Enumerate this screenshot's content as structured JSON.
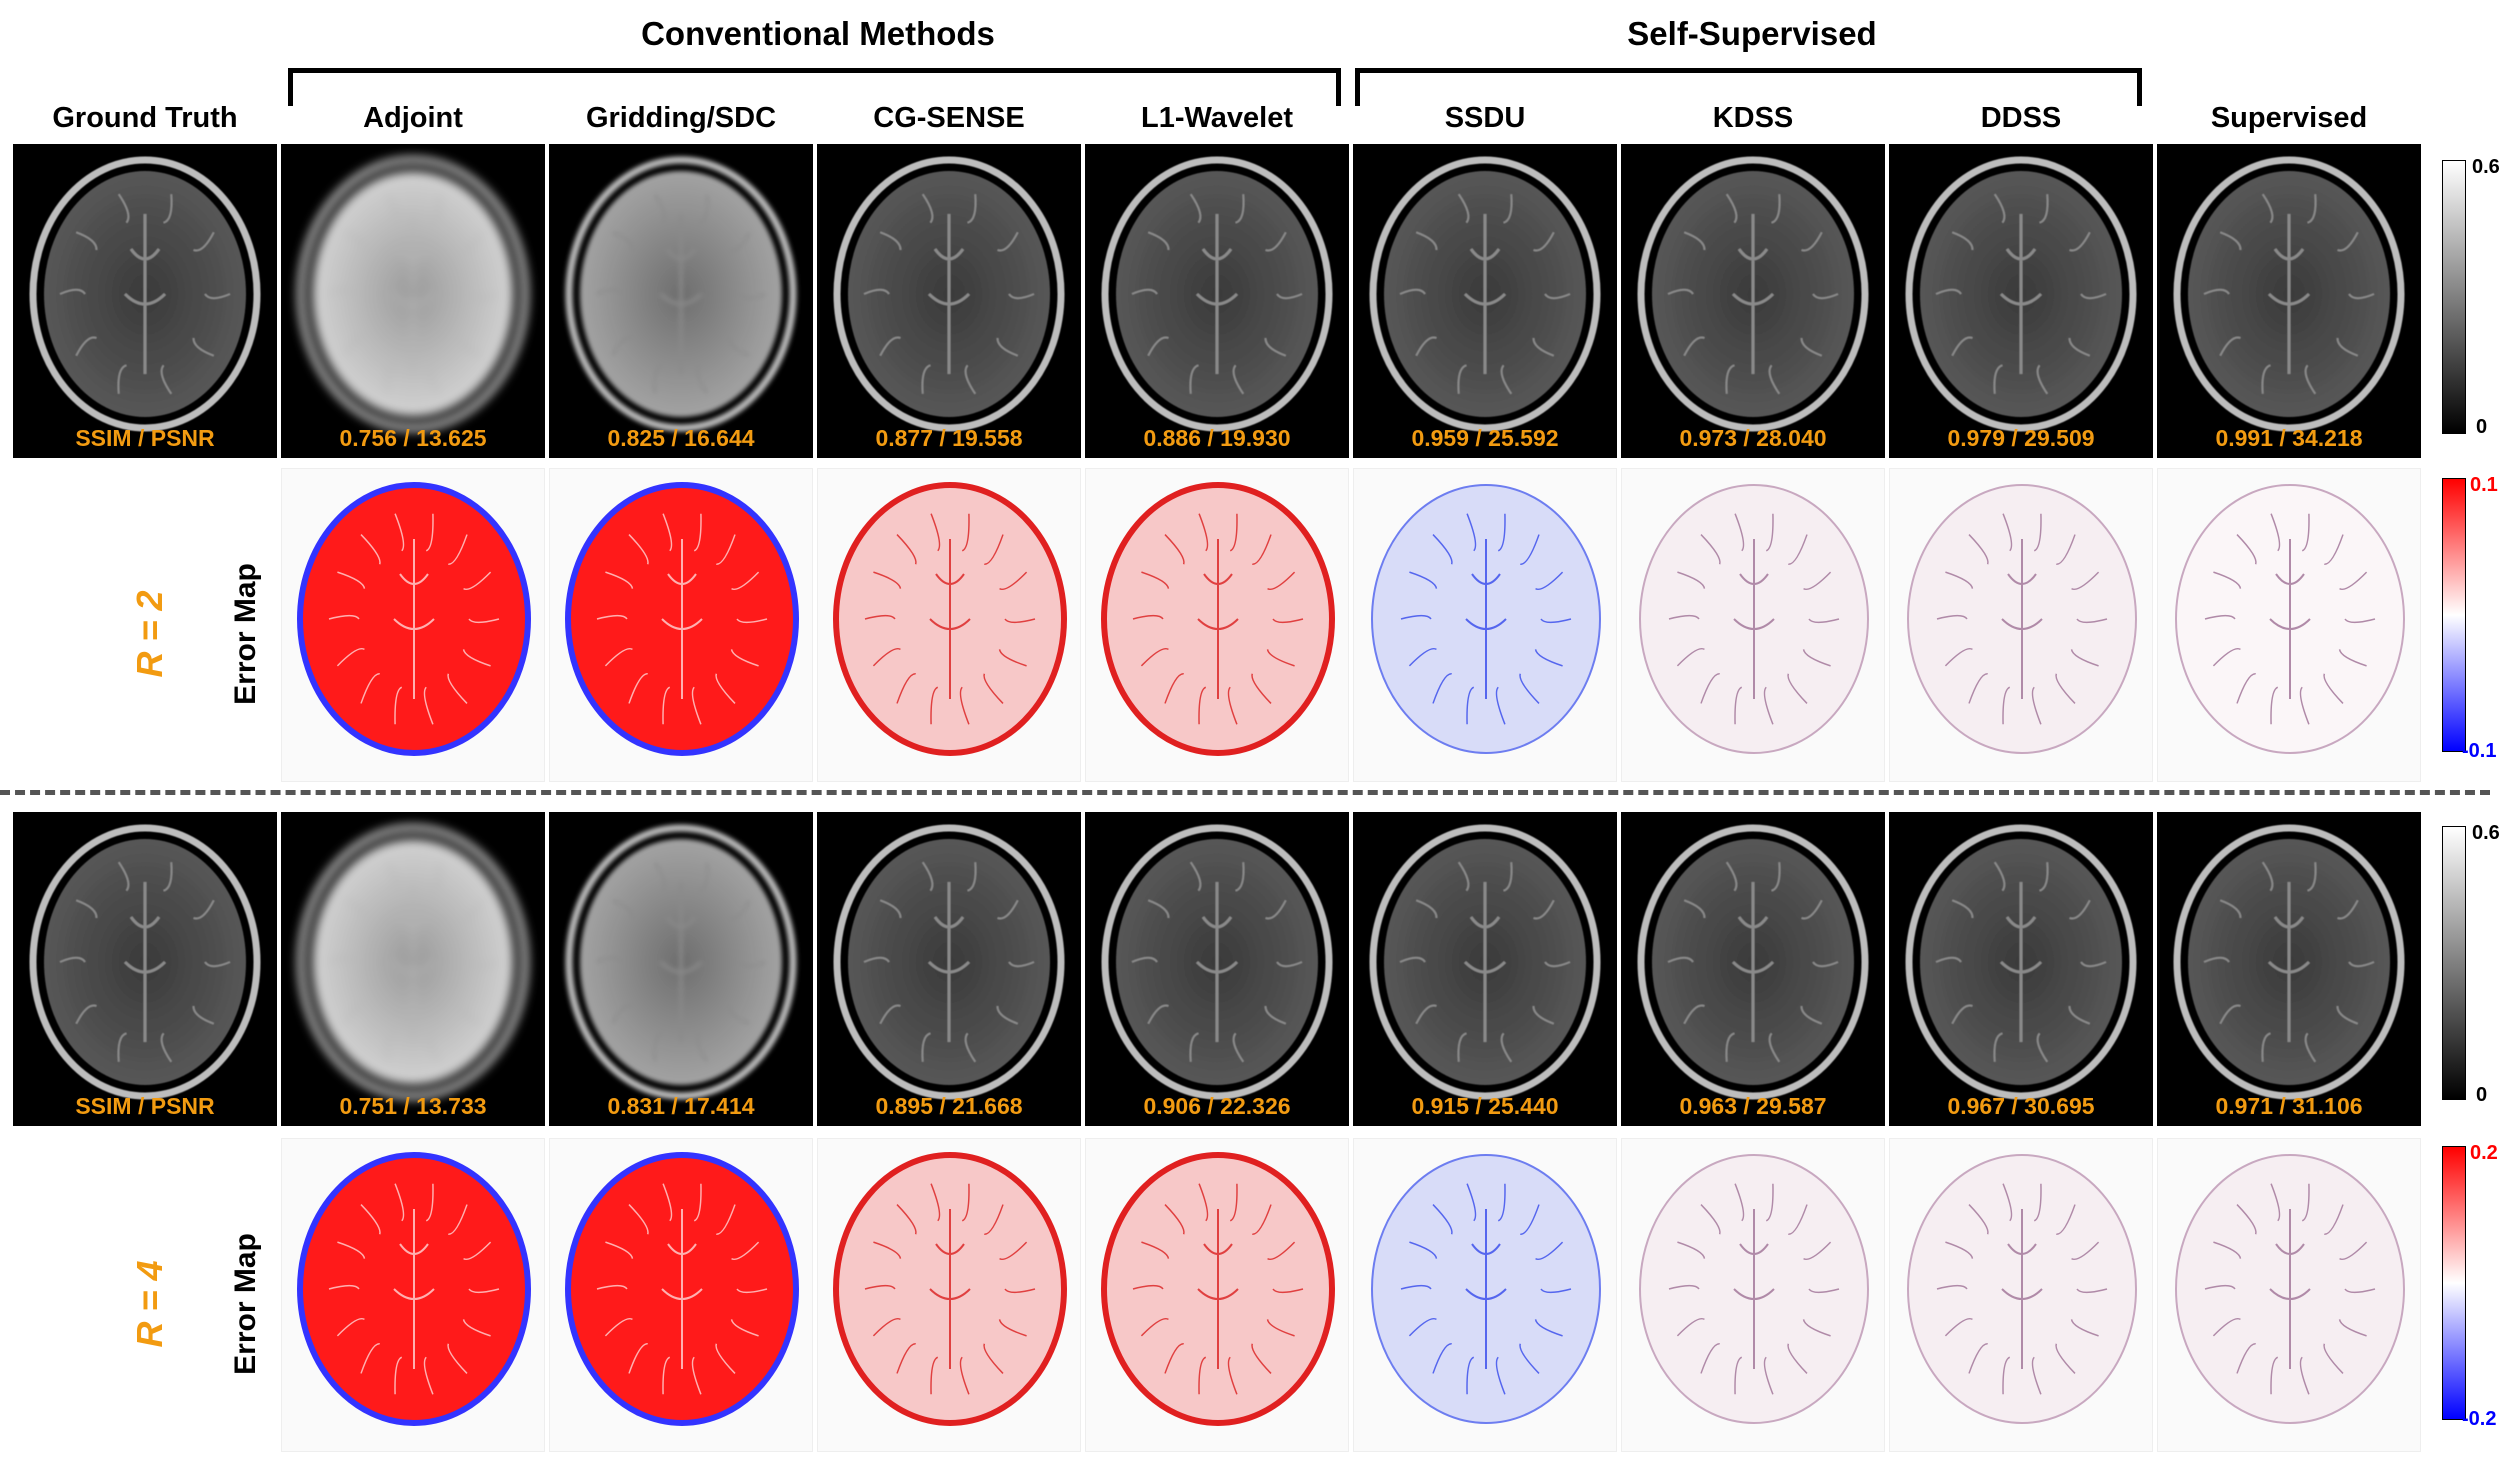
{
  "groups": {
    "conventional": "Conventional Methods",
    "self_supervised": "Self-Supervised"
  },
  "columns": [
    "Ground Truth",
    "Adjoint",
    "Gridding/SDC",
    "CG-SENSE",
    "L1-Wavelet",
    "SSDU",
    "KDSS",
    "DDSS",
    "Supervised"
  ],
  "rows": [
    {
      "label": "R = 2",
      "error_label": "Error Map",
      "metrics": [
        "SSIM / PSNR",
        "0.756 / 13.625",
        "0.825 / 16.644",
        "0.877 / 19.558",
        "0.886 / 19.930",
        "0.959 / 25.592",
        "0.973 / 28.040",
        "0.979 / 29.509",
        "0.991 / 34.218"
      ],
      "image_colorbar": {
        "max": "0.6",
        "min": "0"
      },
      "error_colorbar": {
        "max": "0.1",
        "min": "-0.1"
      }
    },
    {
      "label": "R = 4",
      "error_label": "Error Map",
      "metrics": [
        "SSIM / PSNR",
        "0.751 / 13.733",
        "0.831 / 17.414",
        "0.895 / 21.668",
        "0.906 / 22.326",
        "0.915 / 25.440",
        "0.963 / 29.587",
        "0.967 / 30.695",
        "0.971 / 31.106"
      ],
      "image_colorbar": {
        "max": "0.6",
        "min": "0"
      },
      "error_colorbar": {
        "max": "0.2",
        "min": "-0.2"
      }
    }
  ],
  "colors": {
    "metric_text": "#f29b11",
    "error_positive": "#ff0000",
    "error_negative": "#0000ff"
  }
}
